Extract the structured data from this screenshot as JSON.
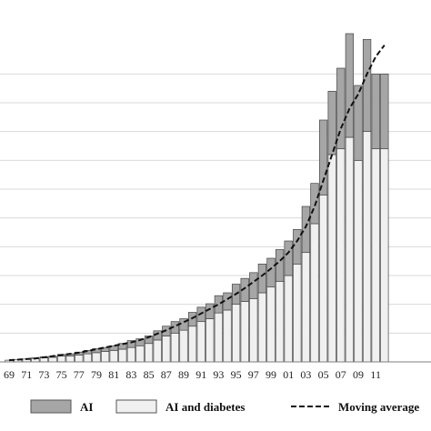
{
  "chart_data": {
    "type": "bar",
    "stacked": true,
    "categories": [
      "69",
      "70",
      "71",
      "72",
      "73",
      "74",
      "75",
      "76",
      "77",
      "78",
      "79",
      "80",
      "81",
      "82",
      "83",
      "84",
      "85",
      "86",
      "87",
      "88",
      "89",
      "90",
      "91",
      "92",
      "93",
      "94",
      "95",
      "96",
      "97",
      "98",
      "99",
      "00",
      "01",
      "02",
      "03",
      "04",
      "05",
      "06",
      "07",
      "08",
      "09",
      "10",
      "11",
      "12"
    ],
    "tick_labels": [
      "69",
      "71",
      "73",
      "75",
      "77",
      "79",
      "81",
      "83",
      "85",
      "87",
      "89",
      "91",
      "93",
      "95",
      "97",
      "99",
      "01",
      "03",
      "05",
      "07",
      "09",
      "11"
    ],
    "series": [
      {
        "name": "AI and diabetes",
        "color": "#f0f0f0",
        "values": [
          0.3,
          0.4,
          0.5,
          0.6,
          0.7,
          0.8,
          1,
          1,
          1.2,
          1.4,
          1.6,
          1.8,
          2,
          2.2,
          2.5,
          2.8,
          3.2,
          3.8,
          4.5,
          5,
          5.5,
          6.2,
          7,
          7.5,
          8.5,
          9,
          10,
          10.5,
          11,
          12,
          13,
          14,
          15,
          17,
          19,
          24,
          29,
          36,
          37,
          39,
          35,
          40,
          37,
          37
        ]
      },
      {
        "name": "AI",
        "color": "#a6a6a6",
        "values": [
          0,
          0,
          0,
          0.1,
          0.2,
          0.2,
          0.3,
          0.4,
          0.5,
          0.6,
          0.7,
          0.7,
          0.8,
          1,
          1.2,
          1.2,
          1.3,
          1.6,
          1.7,
          2,
          2,
          2.4,
          2.5,
          2.6,
          3,
          3,
          3.5,
          4,
          4.5,
          5,
          5,
          5.5,
          6,
          6,
          8,
          7,
          13,
          11,
          14,
          18,
          13,
          16,
          13,
          13
        ]
      }
    ],
    "moving_average": {
      "name": "Moving average",
      "values": [
        0.3,
        0.4,
        0.5,
        0.6,
        0.8,
        1,
        1.2,
        1.4,
        1.6,
        1.9,
        2.2,
        2.5,
        2.8,
        3.1,
        3.4,
        3.8,
        4.3,
        4.9,
        5.5,
        6.2,
        6.9,
        7.6,
        8.4,
        9.2,
        10,
        10.9,
        11.8,
        12.8,
        13.9,
        15,
        16.2,
        17.5,
        19,
        21,
        23.5,
        27,
        31.5,
        36,
        40.5,
        44,
        46.5,
        50,
        53,
        55
      ]
    },
    "ylim": [
      0,
      60
    ],
    "y_gridlines": [
      0,
      5,
      10,
      15,
      20,
      25,
      30,
      35,
      40,
      45,
      50
    ],
    "grid": true,
    "legend_position": "bottom",
    "title": "",
    "xlabel": "",
    "ylabel": ""
  },
  "legend": {
    "ai_label": "AI",
    "ai_diabetes_label": "AI and diabetes",
    "moving_average_label": "Moving average"
  }
}
